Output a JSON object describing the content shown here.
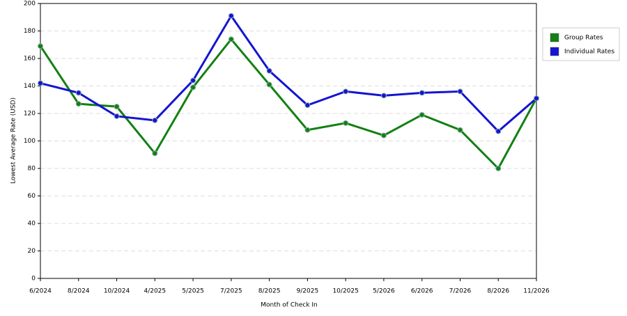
{
  "chart_data": {
    "type": "line",
    "x_label": "Month of Check In",
    "y_label": "Lowest Average Rate (USD)",
    "categories": [
      "6/2024",
      "8/2024",
      "10/2024",
      "4/2025",
      "5/2025",
      "7/2025",
      "8/2025",
      "9/2025",
      "10/2025",
      "5/2026",
      "6/2026",
      "7/2026",
      "8/2026",
      "11/2026"
    ],
    "series": [
      {
        "name": "Group Rates",
        "color": "#128012",
        "values": [
          169,
          127,
          125,
          91,
          139,
          174,
          141,
          108,
          113,
          104,
          119,
          108,
          80,
          131
        ]
      },
      {
        "name": "Individual Rates",
        "color": "#1414d2",
        "values": [
          142,
          135,
          118,
          115,
          144,
          191,
          151,
          126,
          136,
          133,
          135,
          136,
          107,
          131
        ]
      }
    ],
    "ylim": [
      0,
      200
    ],
    "yticks": [
      0,
      20,
      40,
      60,
      80,
      100,
      120,
      140,
      160,
      180,
      200
    ],
    "grid": true,
    "legend": "right"
  }
}
